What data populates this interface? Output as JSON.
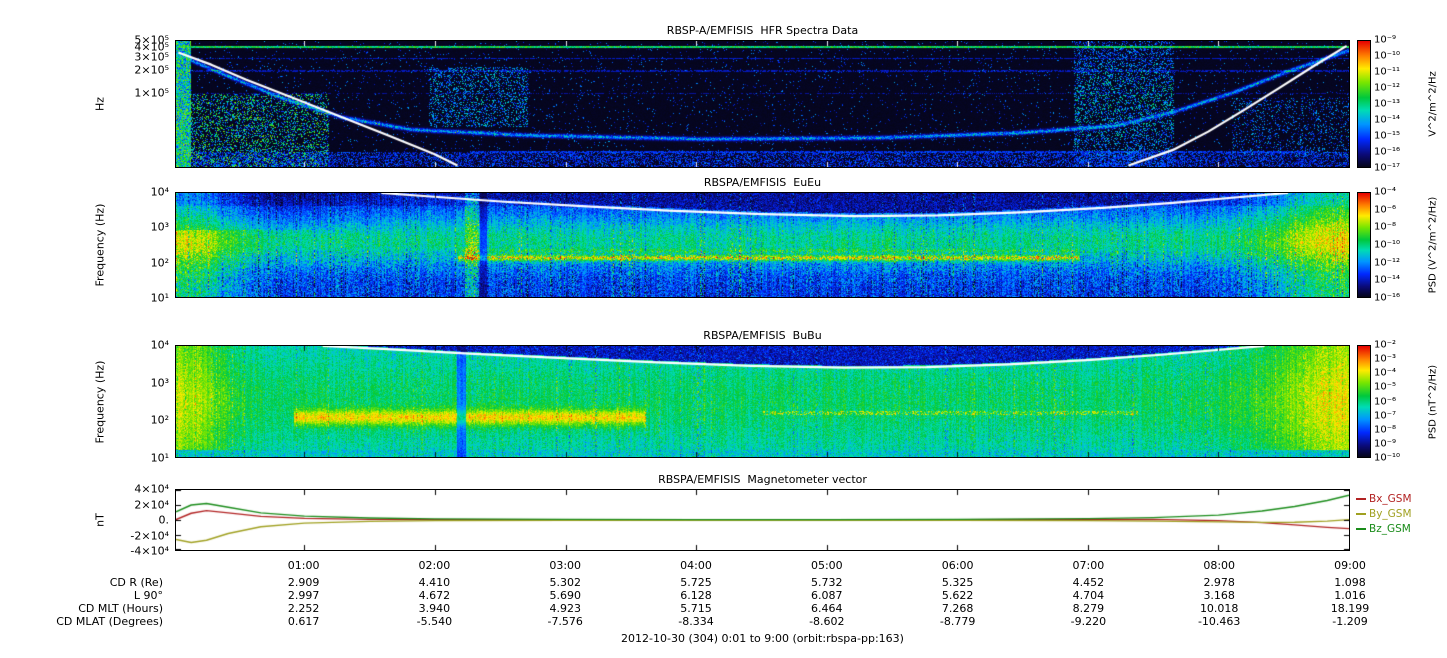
{
  "figure": {
    "caption": "2012-10-30 (304) 0:01 to 9:00 (orbit:rbspa-pp:163)"
  },
  "panels": [
    {
      "title": "RBSP-A/EMFISIS  HFR Spectra Data",
      "ylabel": "Hz",
      "yscale": "log",
      "ylim": [
        10000,
        500000
      ],
      "yticks": [
        {
          "label": "5×10⁵",
          "value": 500000
        },
        {
          "label": "4×10⁵",
          "value": 400000
        },
        {
          "label": "3×10⁵",
          "value": 300000
        },
        {
          "label": "2×10⁵",
          "value": 200000
        },
        {
          "label": "1×10⁵",
          "value": 100000
        }
      ],
      "colorbar": {
        "unit": "V^2/m^2/Hz",
        "ticks": [
          "10⁻⁹",
          "10⁻¹⁰",
          "10⁻¹¹",
          "10⁻¹²",
          "10⁻¹³",
          "10⁻¹⁴",
          "10⁻¹⁵",
          "10⁻¹⁶",
          "10⁻¹⁷"
        ]
      }
    },
    {
      "title": "RBSPA/EMFISIS  EuEu",
      "ylabel": "Frequency (Hz)",
      "yscale": "log",
      "ylim": [
        10,
        10000
      ],
      "yticks": [
        {
          "label": "10⁴",
          "value": 10000
        },
        {
          "label": "10³",
          "value": 1000
        },
        {
          "label": "10²",
          "value": 100
        },
        {
          "label": "10¹",
          "value": 10
        }
      ],
      "colorbar": {
        "unit": "PSD (V^2/m^2/Hz)",
        "ticks": [
          "10⁻⁴",
          "10⁻⁶",
          "10⁻⁸",
          "10⁻¹⁰",
          "10⁻¹²",
          "10⁻¹⁴",
          "10⁻¹⁶"
        ]
      }
    },
    {
      "title": "RBSPA/EMFISIS  BuBu",
      "ylabel": "Frequency (Hz)",
      "yscale": "log",
      "ylim": [
        10,
        10000
      ],
      "yticks": [
        {
          "label": "10⁴",
          "value": 10000
        },
        {
          "label": "10³",
          "value": 1000
        },
        {
          "label": "10²",
          "value": 100
        },
        {
          "label": "10¹",
          "value": 10
        }
      ],
      "colorbar": {
        "unit": "PSD (nT^2/Hz)",
        "ticks": [
          "10⁻²",
          "10⁻³",
          "10⁻⁴",
          "10⁻⁵",
          "10⁻⁶",
          "10⁻⁷",
          "10⁻⁸",
          "10⁻⁹",
          "10⁻¹⁰"
        ]
      }
    },
    {
      "title": "RBSPA/EMFISIS  Magnetometer vector",
      "ylabel": "nT",
      "yscale": "linear",
      "ylim": [
        -40000,
        40000
      ],
      "yticks": [
        {
          "label": "4×10⁴",
          "value": 40000
        },
        {
          "label": "2×10⁴",
          "value": 20000
        },
        {
          "label": "0.",
          "value": 0
        },
        {
          "label": "-2×10⁴",
          "value": -20000
        },
        {
          "label": "-4×10⁴",
          "value": -40000
        }
      ],
      "legend": [
        {
          "label": "Bx_GSM",
          "color": "#b22222"
        },
        {
          "label": "By_GSM",
          "color": "#a0a020"
        },
        {
          "label": "Bz_GSM",
          "color": "#1a8c1a"
        }
      ]
    }
  ],
  "xaxis": {
    "start_minute": 1,
    "end_minute": 540,
    "ticks": [
      {
        "label": "01:00",
        "minutes": 60
      },
      {
        "label": "02:00",
        "minutes": 120
      },
      {
        "label": "03:00",
        "minutes": 180
      },
      {
        "label": "04:00",
        "minutes": 240
      },
      {
        "label": "05:00",
        "minutes": 300
      },
      {
        "label": "06:00",
        "minutes": 360
      },
      {
        "label": "07:00",
        "minutes": 420
      },
      {
        "label": "08:00",
        "minutes": 480
      },
      {
        "label": "09:00",
        "minutes": 540
      }
    ]
  },
  "ephemeris": {
    "rows": [
      {
        "label": "CD R (Re)",
        "values": [
          "2.909",
          "4.410",
          "5.302",
          "5.725",
          "5.732",
          "5.325",
          "4.452",
          "2.978",
          "1.098"
        ]
      },
      {
        "label": "L 90°",
        "values": [
          "2.997",
          "4.672",
          "5.690",
          "6.128",
          "6.087",
          "5.622",
          "4.704",
          "3.168",
          "1.016"
        ]
      },
      {
        "label": "CD MLT (Hours)",
        "values": [
          "2.252",
          "3.940",
          "4.923",
          "5.715",
          "6.464",
          "7.268",
          "8.279",
          "10.018",
          "18.199"
        ]
      },
      {
        "label": "CD MLAT (Degrees)",
        "values": [
          "0.617",
          "-5.540",
          "-7.576",
          "-8.334",
          "-8.602",
          "-8.779",
          "-9.220",
          "-10.463",
          "-1.209"
        ]
      }
    ]
  },
  "chart_data": [
    {
      "type": "spectrogram",
      "title": "RBSP-A/EMFISIS HFR Spectra Data",
      "xrange": "2012-10-30 00:01 to 09:00 UT",
      "ylabel": "Hz",
      "yscale": "log",
      "ylim": [
        10000,
        500000
      ],
      "colorbar": {
        "label": "V^2/m^2/Hz",
        "scale": "log",
        "range": [
          1e-17,
          1e-09
        ]
      },
      "white_trace_hz": [
        [
          [
            0.002,
            350000
          ],
          [
            0.03,
            240000
          ],
          [
            0.06,
            150000
          ],
          [
            0.1,
            85000
          ],
          [
            0.14,
            48000
          ],
          [
            0.18,
            27000
          ],
          [
            0.22,
            15000
          ],
          [
            0.24,
            10500
          ]
        ],
        [
          [
            0.812,
            10500
          ],
          [
            0.85,
            17000
          ],
          [
            0.88,
            30000
          ],
          [
            0.91,
            58000
          ],
          [
            0.94,
            115000
          ],
          [
            0.97,
            230000
          ],
          [
            0.998,
            430000
          ]
        ]
      ],
      "blue_trace_hz": [
        [
          [
            0.0,
            338000
          ],
          [
            0.04,
            181000
          ],
          [
            0.09,
            86000
          ],
          [
            0.14,
            47800
          ],
          [
            0.2,
            32300
          ],
          [
            0.3,
            27100
          ],
          [
            0.45,
            24100
          ],
          [
            0.6,
            25100
          ],
          [
            0.72,
            29300
          ],
          [
            0.8,
            36400
          ],
          [
            0.85,
            55900
          ],
          [
            0.9,
            101000
          ],
          [
            0.95,
            203000
          ],
          [
            1.0,
            380000
          ]
        ]
      ],
      "notes": "Background mostly below threshold (black). Narrowband emission line near 4.5e5 Hz across whole interval; upper-hybrid band follows blue trace; broadband bursts near 00:05-01:10, 02:00-02:30 and 07:00-07:40."
    },
    {
      "type": "spectrogram",
      "title": "RBSPA/EMFISIS EuEu",
      "ylabel": "Frequency (Hz)",
      "yscale": "log",
      "ylim": [
        10,
        10000
      ],
      "colorbar": {
        "label": "PSD (V^2/m^2/Hz)",
        "scale": "log",
        "range": [
          1e-16,
          0.0001
        ]
      },
      "white_trace_hz": [
        [
          [
            0.175,
            10000
          ],
          [
            0.22,
            7800
          ],
          [
            0.28,
            5600
          ],
          [
            0.35,
            4100
          ],
          [
            0.42,
            3100
          ],
          [
            0.5,
            2450
          ],
          [
            0.58,
            2150
          ],
          [
            0.65,
            2250
          ],
          [
            0.72,
            2750
          ],
          [
            0.79,
            3700
          ],
          [
            0.85,
            5200
          ],
          [
            0.9,
            7300
          ],
          [
            0.948,
            10000
          ]
        ]
      ],
      "notes": "Broadband green emission 30 Hz - 3 kHz; intense banded emission near 100-200 Hz from ~02:30 to ~07:30; strong enhancement near both perigee passes (edges); region above fce (white trace) near background."
    },
    {
      "type": "spectrogram",
      "title": "RBSPA/EMFISIS BuBu",
      "ylabel": "Frequency (Hz)",
      "yscale": "log",
      "ylim": [
        10,
        10000
      ],
      "colorbar": {
        "label": "PSD (nT^2/Hz)",
        "scale": "log",
        "range": [
          1e-10,
          0.01
        ]
      },
      "white_trace_hz": [
        [
          [
            0.125,
            10000
          ],
          [
            0.18,
            8200
          ],
          [
            0.25,
            6200
          ],
          [
            0.33,
            4700
          ],
          [
            0.41,
            3600
          ],
          [
            0.49,
            2900
          ],
          [
            0.57,
            2600
          ],
          [
            0.64,
            2700
          ],
          [
            0.71,
            3200
          ],
          [
            0.78,
            4200
          ],
          [
            0.84,
            5800
          ],
          [
            0.928,
            10000
          ]
        ]
      ],
      "notes": "Green broadband magnetic noise throughout; yellow band near 100 Hz from ~00:50 to ~03:20; dark (low PSD) region above fce white trace; enhancements at both edges."
    },
    {
      "type": "line",
      "title": "RBSPA/EMFISIS Magnetometer vector",
      "ylabel": "nT",
      "ylim": [
        -40000,
        40000
      ],
      "x_minutes": [
        1,
        8,
        15,
        25,
        40,
        60,
        90,
        120,
        180,
        240,
        300,
        360,
        420,
        450,
        480,
        500,
        515,
        530,
        540
      ],
      "series": [
        {
          "name": "Bx_GSM",
          "color": "#b22222",
          "values": [
            500,
            9000,
            12500,
            9500,
            4800,
            2100,
            900,
            450,
            250,
            150,
            160,
            260,
            600,
            900,
            -800,
            -3500,
            -6500,
            -9800,
            -11500
          ]
        },
        {
          "name": "By_GSM",
          "color": "#a0a020",
          "values": [
            -26000,
            -30000,
            -27000,
            -18000,
            -9000,
            -4200,
            -1800,
            -900,
            -400,
            -250,
            -250,
            -400,
            -900,
            -1500,
            -2500,
            -3200,
            -3000,
            -1500,
            500
          ]
        },
        {
          "name": "Bz_GSM",
          "color": "#1a8c1a",
          "values": [
            11000,
            20000,
            22000,
            17000,
            9500,
            5200,
            2600,
            1500,
            800,
            550,
            550,
            800,
            1800,
            3200,
            6500,
            12000,
            18000,
            26000,
            33000
          ]
        }
      ]
    },
    {
      "type": "table",
      "title": "Orbit ephemeris",
      "columns": [
        "01:00",
        "02:00",
        "03:00",
        "04:00",
        "05:00",
        "06:00",
        "07:00",
        "08:00",
        "09:00"
      ],
      "rows": [
        {
          "label": "CD R (Re)",
          "values": [
            2.909,
            4.41,
            5.302,
            5.725,
            5.732,
            5.325,
            4.452,
            2.978,
            1.098
          ]
        },
        {
          "label": "L 90°",
          "values": [
            2.997,
            4.672,
            5.69,
            6.128,
            6.087,
            5.622,
            4.704,
            3.168,
            1.016
          ]
        },
        {
          "label": "CD MLT (Hours)",
          "values": [
            2.252,
            3.94,
            4.923,
            5.715,
            6.464,
            7.268,
            8.279,
            10.018,
            18.199
          ]
        },
        {
          "label": "CD MLAT (Degrees)",
          "values": [
            0.617,
            -5.54,
            -7.576,
            -8.334,
            -8.602,
            -8.779,
            -9.22,
            -10.463,
            -1.209
          ]
        }
      ]
    }
  ]
}
